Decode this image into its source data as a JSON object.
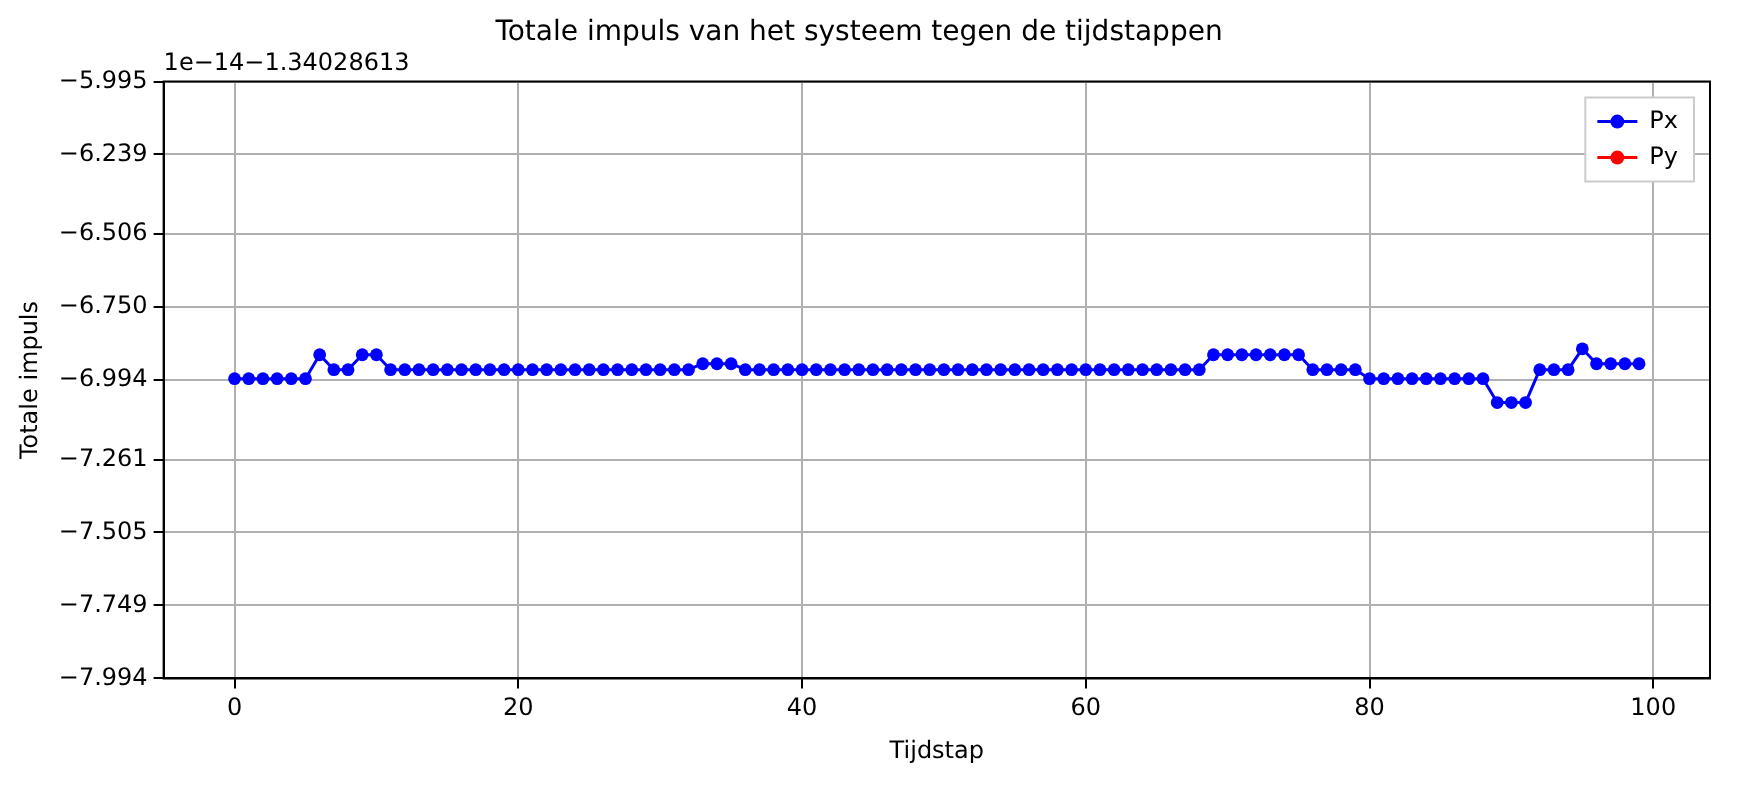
{
  "chart_data": {
    "type": "line",
    "title": "Totale impuls van het systeem tegen de tijdstappen",
    "xlabel": "Tijdstap",
    "ylabel": "Totale impuls",
    "annotations": [
      "1e−14−1.34028613"
    ],
    "x": [
      0,
      1,
      2,
      3,
      4,
      5,
      6,
      7,
      8,
      9,
      10,
      11,
      12,
      13,
      14,
      15,
      16,
      17,
      18,
      19,
      20,
      21,
      22,
      23,
      24,
      25,
      26,
      27,
      28,
      29,
      30,
      31,
      32,
      33,
      34,
      35,
      36,
      37,
      38,
      39,
      40,
      41,
      42,
      43,
      44,
      45,
      46,
      47,
      48,
      49,
      50,
      51,
      52,
      53,
      54,
      55,
      56,
      57,
      58,
      59,
      60,
      61,
      62,
      63,
      64,
      65,
      66,
      67,
      68,
      69,
      70,
      71,
      72,
      73,
      74,
      75,
      76,
      77,
      78,
      79,
      80,
      81,
      82,
      83,
      84,
      85,
      86,
      87,
      88,
      89,
      90,
      91,
      92,
      93,
      94,
      95,
      96,
      97,
      98,
      99
    ],
    "series": [
      {
        "name": "Px",
        "color": "#0000ff",
        "values": [
          -6.99,
          -6.99,
          -6.99,
          -6.99,
          -6.99,
          -6.99,
          -6.91,
          -6.96,
          -6.96,
          -6.91,
          -6.91,
          -6.96,
          -6.96,
          -6.96,
          -6.96,
          -6.96,
          -6.96,
          -6.96,
          -6.96,
          -6.96,
          -6.96,
          -6.96,
          -6.96,
          -6.96,
          -6.96,
          -6.96,
          -6.96,
          -6.96,
          -6.96,
          -6.96,
          -6.96,
          -6.96,
          -6.96,
          -6.94,
          -6.94,
          -6.94,
          -6.96,
          -6.96,
          -6.96,
          -6.96,
          -6.96,
          -6.96,
          -6.96,
          -6.96,
          -6.96,
          -6.96,
          -6.96,
          -6.96,
          -6.96,
          -6.96,
          -6.96,
          -6.96,
          -6.96,
          -6.96,
          -6.96,
          -6.96,
          -6.96,
          -6.96,
          -6.96,
          -6.96,
          -6.96,
          -6.96,
          -6.96,
          -6.96,
          -6.96,
          -6.96,
          -6.96,
          -6.96,
          -6.96,
          -6.91,
          -6.91,
          -6.91,
          -6.91,
          -6.91,
          -6.91,
          -6.91,
          -6.96,
          -6.96,
          -6.96,
          -6.96,
          -6.99,
          -6.99,
          -6.99,
          -6.99,
          -6.99,
          -6.99,
          -6.99,
          -6.99,
          -6.99,
          -7.07,
          -7.07,
          -7.07,
          -6.96,
          -6.96,
          -6.96,
          -6.89,
          -6.94,
          -6.94,
          -6.94,
          -6.94
        ]
      },
      {
        "name": "Py",
        "color": "#ff0000",
        "values": [
          null,
          null,
          null,
          null,
          null,
          null,
          null,
          null,
          null,
          null,
          null,
          null,
          null,
          null,
          null,
          null,
          null,
          null,
          null,
          null,
          null,
          null,
          null,
          null,
          null,
          null,
          null,
          null,
          null,
          null,
          null,
          null,
          null,
          null,
          null,
          null,
          null,
          null,
          null,
          null,
          null,
          null,
          null,
          null,
          null,
          null,
          null,
          null,
          null,
          null,
          null,
          null,
          null,
          null,
          null,
          null,
          null,
          null,
          null,
          null,
          null,
          null,
          null,
          null,
          null,
          null,
          null,
          null,
          null,
          null,
          null,
          null,
          null,
          null,
          null,
          null,
          null,
          null,
          null,
          null,
          null,
          null,
          null,
          null,
          null,
          null,
          null,
          null,
          null,
          null,
          null,
          null,
          null,
          null,
          null,
          null,
          null,
          null,
          null,
          null
        ]
      }
    ],
    "xlim": [
      -5,
      104
    ],
    "xticks": [
      0,
      20,
      40,
      60,
      80,
      100
    ],
    "ylim": [
      -7.994,
      -5.995
    ],
    "yticks": [
      {
        "value": -5.995,
        "label": "−5.995"
      },
      {
        "value": -6.239,
        "label": "−6.239"
      },
      {
        "value": -6.506,
        "label": "−6.506"
      },
      {
        "value": -6.75,
        "label": "−6.750"
      },
      {
        "value": -6.994,
        "label": "−6.994"
      },
      {
        "value": -7.261,
        "label": "−7.261"
      },
      {
        "value": -7.505,
        "label": "−7.505"
      },
      {
        "value": -7.749,
        "label": "−7.749"
      },
      {
        "value": -7.994,
        "label": "−7.994"
      }
    ],
    "grid": true,
    "legend": "top right",
    "marker": "circle",
    "line_style": "solid"
  }
}
